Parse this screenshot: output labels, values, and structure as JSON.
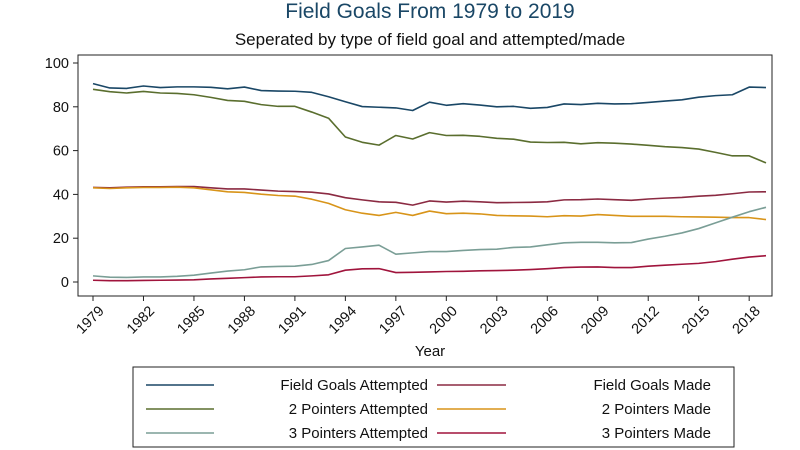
{
  "chart_data": {
    "type": "line",
    "title": "Field Goals From 1979 to 2019",
    "subtitle": "Seperated by type of field goal and attempted/made",
    "xlabel": "Year",
    "ylabel": "",
    "xlim": [
      1979,
      2019
    ],
    "ylim": [
      0,
      100
    ],
    "x_ticks": [
      1979,
      1982,
      1985,
      1988,
      1991,
      1994,
      1997,
      2000,
      2003,
      2006,
      2009,
      2012,
      2015,
      2018
    ],
    "y_ticks": [
      0,
      20,
      40,
      60,
      80,
      100
    ],
    "grid": false,
    "legend_position": "bottom",
    "x": [
      1979,
      1980,
      1981,
      1982,
      1983,
      1984,
      1985,
      1986,
      1987,
      1988,
      1989,
      1990,
      1991,
      1992,
      1993,
      1994,
      1995,
      1996,
      1997,
      1998,
      1999,
      2000,
      2001,
      2002,
      2003,
      2004,
      2005,
      2006,
      2007,
      2008,
      2009,
      2010,
      2011,
      2012,
      2013,
      2014,
      2015,
      2016,
      2017,
      2018,
      2019
    ],
    "series": [
      {
        "name": "Field Goals Attempted",
        "color": "#1a4766",
        "values": [
          90.6,
          88.6,
          88.4,
          89.5,
          88.8,
          89.1,
          89.1,
          88.9,
          88.2,
          89.0,
          87.4,
          87.2,
          87.1,
          86.6,
          84.6,
          82.3,
          80.1,
          79.8,
          79.5,
          78.3,
          82.1,
          80.7,
          81.4,
          80.8,
          80.0,
          80.2,
          79.3,
          79.7,
          81.3,
          81.0,
          81.6,
          81.3,
          81.4,
          82.0,
          82.6,
          83.2,
          84.4,
          85.1,
          85.5,
          89.0,
          88.8
        ]
      },
      {
        "name": "Field Goals Made",
        "color": "#8b2a42",
        "values": [
          43.2,
          43.0,
          43.3,
          43.5,
          43.5,
          43.6,
          43.6,
          43.0,
          42.5,
          42.5,
          42.0,
          41.5,
          41.3,
          41.0,
          40.2,
          38.5,
          37.5,
          36.6,
          36.4,
          35.1,
          37.0,
          36.5,
          36.9,
          36.6,
          36.2,
          36.3,
          36.4,
          36.6,
          37.5,
          37.6,
          37.9,
          37.6,
          37.3,
          37.9,
          38.3,
          38.6,
          39.2,
          39.6,
          40.3,
          41.1,
          41.2
        ]
      },
      {
        "name": "2 Pointers Attempted",
        "color": "#5a6e2e",
        "values": [
          88.0,
          86.9,
          86.3,
          87.0,
          86.3,
          86.1,
          85.5,
          84.3,
          82.9,
          82.5,
          81.0,
          80.2,
          80.2,
          77.6,
          74.8,
          66.2,
          63.8,
          62.5,
          66.9,
          65.3,
          68.2,
          66.9,
          67.0,
          66.5,
          65.6,
          65.2,
          63.9,
          63.7,
          63.8,
          63.1,
          63.6,
          63.4,
          63.0,
          62.4,
          61.8,
          61.4,
          60.7,
          59.2,
          57.6,
          57.6,
          54.4
        ]
      },
      {
        "name": "2 Pointers Made",
        "color": "#d89419",
        "values": [
          43.0,
          42.7,
          43.0,
          43.2,
          43.2,
          43.3,
          43.0,
          42.1,
          41.2,
          40.9,
          40.1,
          39.5,
          39.2,
          37.8,
          35.9,
          33.0,
          31.4,
          30.4,
          31.8,
          30.4,
          32.4,
          31.2,
          31.4,
          31.1,
          30.4,
          30.2,
          30.1,
          29.8,
          30.3,
          30.1,
          30.8,
          30.4,
          30.0,
          30.0,
          30.0,
          29.8,
          29.7,
          29.6,
          29.4,
          29.4,
          28.5
        ]
      },
      {
        "name": "3 Pointers Attempted",
        "color": "#7a9e96",
        "values": [
          2.8,
          2.2,
          2.1,
          2.3,
          2.3,
          2.6,
          3.1,
          4.1,
          5.0,
          5.6,
          6.9,
          7.1,
          7.2,
          8.0,
          9.8,
          15.3,
          16.0,
          16.8,
          12.7,
          13.3,
          13.9,
          13.9,
          14.4,
          14.8,
          15.0,
          15.8,
          16.0,
          17.0,
          17.9,
          18.1,
          18.1,
          17.9,
          18.0,
          19.6,
          20.9,
          22.4,
          24.4,
          27.0,
          29.6,
          32.1,
          34.1
        ]
      },
      {
        "name": "3 Pointers Made",
        "color": "#a0143c",
        "values": [
          0.8,
          0.6,
          0.6,
          0.7,
          0.8,
          0.9,
          1.0,
          1.4,
          1.7,
          2.0,
          2.3,
          2.4,
          2.4,
          2.8,
          3.3,
          5.4,
          6.0,
          6.1,
          4.3,
          4.4,
          4.6,
          4.8,
          4.9,
          5.1,
          5.2,
          5.4,
          5.7,
          6.1,
          6.6,
          6.8,
          6.9,
          6.6,
          6.6,
          7.2,
          7.7,
          8.1,
          8.5,
          9.3,
          10.4,
          11.4,
          12.0
        ]
      }
    ]
  }
}
